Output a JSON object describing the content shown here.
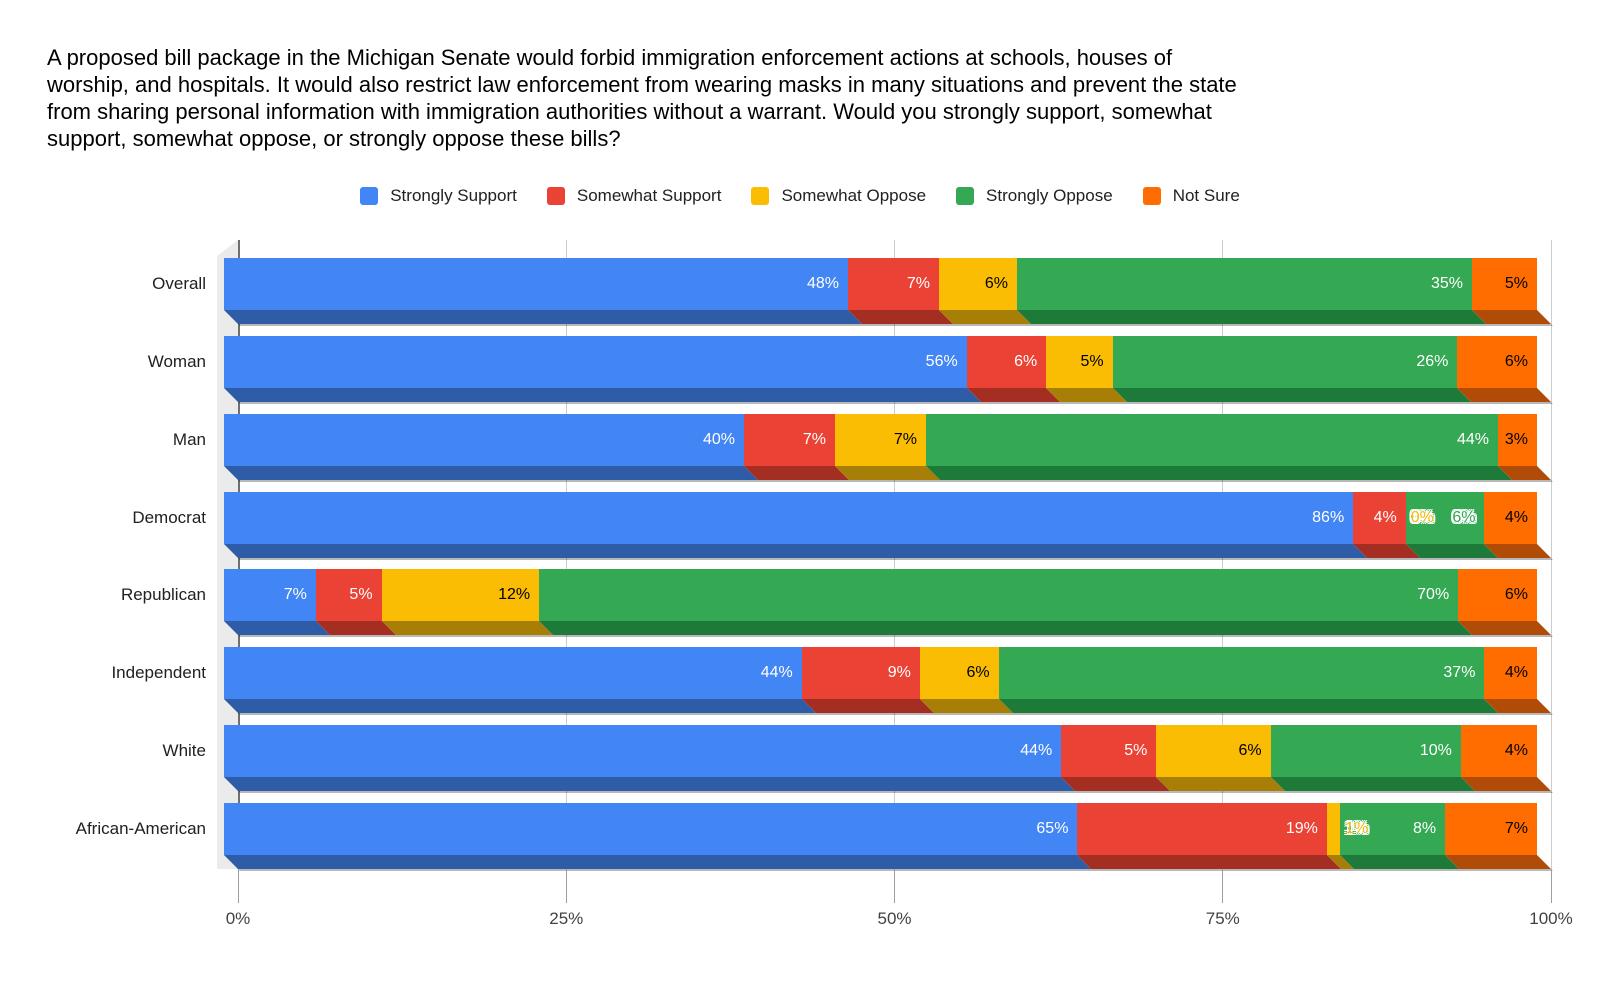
{
  "title": {
    "full": "A proposed bill package in the Michigan Senate would forbid immigration enforcement actions at schools, houses of worship, and hospitals. It would also restrict law enforcement from wearing masks in many situations and prevent the state from sharing personal information with immigration authorities without a warrant. Would you strongly support, somewhat support, somewhat oppose, or strongly oppose these bills?",
    "lines": [
      "A proposed bill package in the Michigan Senate would forbid immigration enforcement actions at schools, houses of",
      "worship, and hospitals. It would also restrict law enforcement from wearing masks in many situations and prevent the state",
      "from sharing personal information with immigration authorities without a warrant. Would you strongly support, somewhat",
      "support, somewhat oppose, or strongly oppose these bills?"
    ]
  },
  "chart_data": {
    "type": "bar",
    "subtype": "horizontal-stacked-3d",
    "normalized_to_100_percent": true,
    "title": "A proposed bill package in the Michigan Senate would forbid immigration enforcement actions at schools, houses of worship, and hospitals. It would also restrict law enforcement from wearing masks in many situations and prevent the state from sharing personal information with immigration authorities without a warrant. Would you strongly support, somewhat support, somewhat oppose, or strongly oppose these bills?",
    "legend_position": "top",
    "grid": true,
    "xlabel": "",
    "ylabel": "",
    "xlim": [
      0,
      100
    ],
    "x_ticks": [
      {
        "label": "0%",
        "pct": 0
      },
      {
        "label": "25%",
        "pct": 25
      },
      {
        "label": "50%",
        "pct": 50
      },
      {
        "label": "75%",
        "pct": 75
      },
      {
        "label": "100%",
        "pct": 100
      }
    ],
    "categories": [
      "Overall",
      "Woman",
      "Man",
      "Democrat",
      "Republican",
      "Independent",
      "White",
      "African-American"
    ],
    "series": [
      {
        "name": "Strongly Support",
        "color": "#4285F4",
        "dark_color": "#2E5CA6",
        "label_color": "white",
        "values": [
          48,
          56,
          40,
          86,
          7,
          44,
          44,
          65
        ]
      },
      {
        "name": "Somewhat Support",
        "color": "#EA4335",
        "dark_color": "#A52E22",
        "label_color": "white",
        "values": [
          7,
          6,
          7,
          4,
          5,
          9,
          5,
          19
        ]
      },
      {
        "name": "Somewhat Oppose",
        "color": "#FBBC04",
        "dark_color": "#A87F06",
        "label_color": "black",
        "values": [
          6,
          5,
          7,
          0,
          12,
          6,
          6,
          1
        ]
      },
      {
        "name": "Strongly Oppose",
        "color": "#34A853",
        "dark_color": "#1E7A38",
        "label_color": "white",
        "values": [
          35,
          26,
          44,
          6,
          70,
          37,
          10,
          8
        ]
      },
      {
        "name": "Not Sure",
        "color": "#FF6D01",
        "dark_color": "#B04C08",
        "label_color": "black",
        "values": [
          5,
          6,
          3,
          4,
          6,
          4,
          4,
          7
        ]
      }
    ],
    "value_label_suffix": "%",
    "label_overrides": [
      {
        "row": 3,
        "series": 2,
        "style": "outline-yellow",
        "overflow": true
      },
      {
        "row": 3,
        "series": 3,
        "style": "outline-green",
        "overflow": false
      },
      {
        "row": 7,
        "series": 2,
        "style": "outline-yellow",
        "overflow": true
      }
    ]
  },
  "layout_colors": {
    "background": "#ffffff",
    "wall": "#ebebeb",
    "gridline": "#cccccc",
    "baseline": "#6f6f6f",
    "axis_text": "#424242",
    "category_text": "#202124",
    "legend_text": "#212121"
  }
}
